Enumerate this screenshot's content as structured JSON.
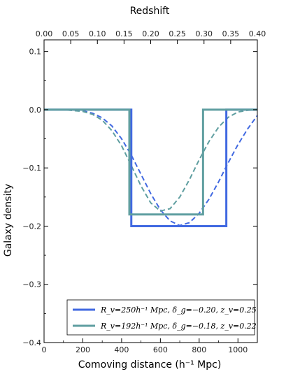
{
  "chart_data": {
    "type": "line",
    "xlabel": "Comoving distance (h⁻¹ Mpc)",
    "ylabel": "Galaxy density",
    "x2label": "Redshift",
    "xlim": [
      0,
      1100
    ],
    "ylim": [
      -0.4,
      0.12
    ],
    "xticks": [
      0,
      200,
      400,
      600,
      800,
      1000
    ],
    "yticks": [
      -0.4,
      -0.3,
      -0.2,
      -0.1,
      0.0,
      0.1
    ],
    "ytick_labels": [
      "−0.4",
      "−0.3",
      "−0.2",
      "−0.1",
      "0.0",
      "0.1"
    ],
    "x2ticks": [
      "0.00",
      "0.05",
      "0.10",
      "0.15",
      "0.20",
      "0.25",
      "0.30",
      "0.35",
      "0.40"
    ],
    "x2_max": 0.4,
    "grid": false,
    "legend_position": "bottom-right",
    "series": [
      {
        "name": "R_v=250h⁻¹ Mpc, δ_g=−0.20, z_v=0.25",
        "color": "#4169e1",
        "style": "solid",
        "x": [
          0,
          450,
          450,
          940,
          940,
          1100
        ],
        "y": [
          0,
          0,
          -0.2,
          -0.2,
          0,
          0
        ]
      },
      {
        "name": "R_v=192h⁻¹ Mpc, δ_g=−0.18, z_v=0.22",
        "color": "#5f9ea0",
        "style": "solid",
        "x": [
          0,
          440,
          440,
          820,
          820,
          1100
        ],
        "y": [
          0,
          0,
          -0.18,
          -0.18,
          0,
          0
        ]
      },
      {
        "name": "",
        "color": "#4169e1",
        "style": "dashed",
        "x": [
          0,
          100,
          200,
          250,
          300,
          350,
          400,
          450,
          500,
          550,
          600,
          650,
          700,
          750,
          800,
          850,
          900,
          950,
          1000,
          1050,
          1100
        ],
        "y": [
          0,
          0,
          -0.002,
          -0.006,
          -0.014,
          -0.028,
          -0.05,
          -0.078,
          -0.111,
          -0.144,
          -0.172,
          -0.191,
          -0.199,
          -0.194,
          -0.178,
          -0.154,
          -0.124,
          -0.091,
          -0.06,
          -0.033,
          -0.01
        ]
      },
      {
        "name": "",
        "color": "#5f9ea0",
        "style": "dashed",
        "x": [
          0,
          100,
          200,
          250,
          300,
          350,
          400,
          450,
          500,
          550,
          600,
          650,
          700,
          750,
          800,
          850,
          900,
          950,
          1000,
          1050,
          1100
        ],
        "y": [
          0,
          0,
          -0.003,
          -0.008,
          -0.018,
          -0.036,
          -0.062,
          -0.096,
          -0.131,
          -0.16,
          -0.174,
          -0.17,
          -0.15,
          -0.12,
          -0.086,
          -0.055,
          -0.03,
          -0.013,
          -0.004,
          -0.001,
          0
        ]
      }
    ],
    "legend": [
      {
        "series": 0,
        "label": "R_v=250h⁻¹ Mpc, δ_g=−0.20, z_v=0.25"
      },
      {
        "series": 1,
        "label": "R_v=192h⁻¹ Mpc, δ_g=−0.18, z_v=0.22"
      }
    ]
  }
}
